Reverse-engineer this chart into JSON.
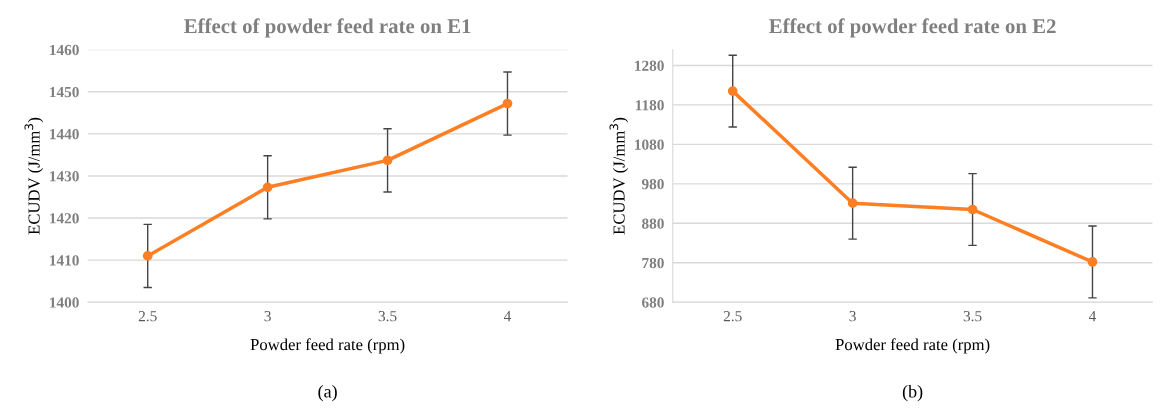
{
  "chart_data": [
    {
      "type": "line",
      "title": "Effect of powder feed rate on E1",
      "xlabel": "Powder feed rate (rpm)",
      "ylabel": "ECUDV (J/mm$^{3}$)",
      "categories": [
        "2.5",
        "3",
        "3.5",
        "4"
      ],
      "series": [
        {
          "color": "#fd7f23",
          "values": [
            1411,
            1427.3,
            1433.7,
            1447.2
          ],
          "errors": [
            7.5,
            7.5,
            7.5,
            7.5
          ]
        }
      ],
      "ylim": [
        1400,
        1460
      ],
      "yticks": [
        1400,
        1410,
        1420,
        1430,
        1440,
        1450,
        1460
      ],
      "grid": "y",
      "marker": "circle",
      "line_style": "solid",
      "annotations": [
        "(a)"
      ]
    },
    {
      "type": "line",
      "title": "Effect of powder feed rate on E2",
      "xlabel": "Powder feed rate (rpm)",
      "ylabel": "ECUDV (J/mm$^{3}$)",
      "categories": [
        "2.5",
        "3",
        "3.5",
        "4"
      ],
      "series": [
        {
          "color": "#fd7f23",
          "values": [
            1215,
            931,
            915,
            782
          ],
          "errors": [
            91,
            91,
            91,
            91
          ]
        }
      ],
      "ylim": [
        680,
        1320
      ],
      "yticks": [
        680,
        780,
        880,
        980,
        1080,
        1180,
        1280
      ],
      "grid": "y",
      "marker": "circle",
      "line_style": "solid",
      "annotations": [
        "(b)"
      ]
    }
  ]
}
